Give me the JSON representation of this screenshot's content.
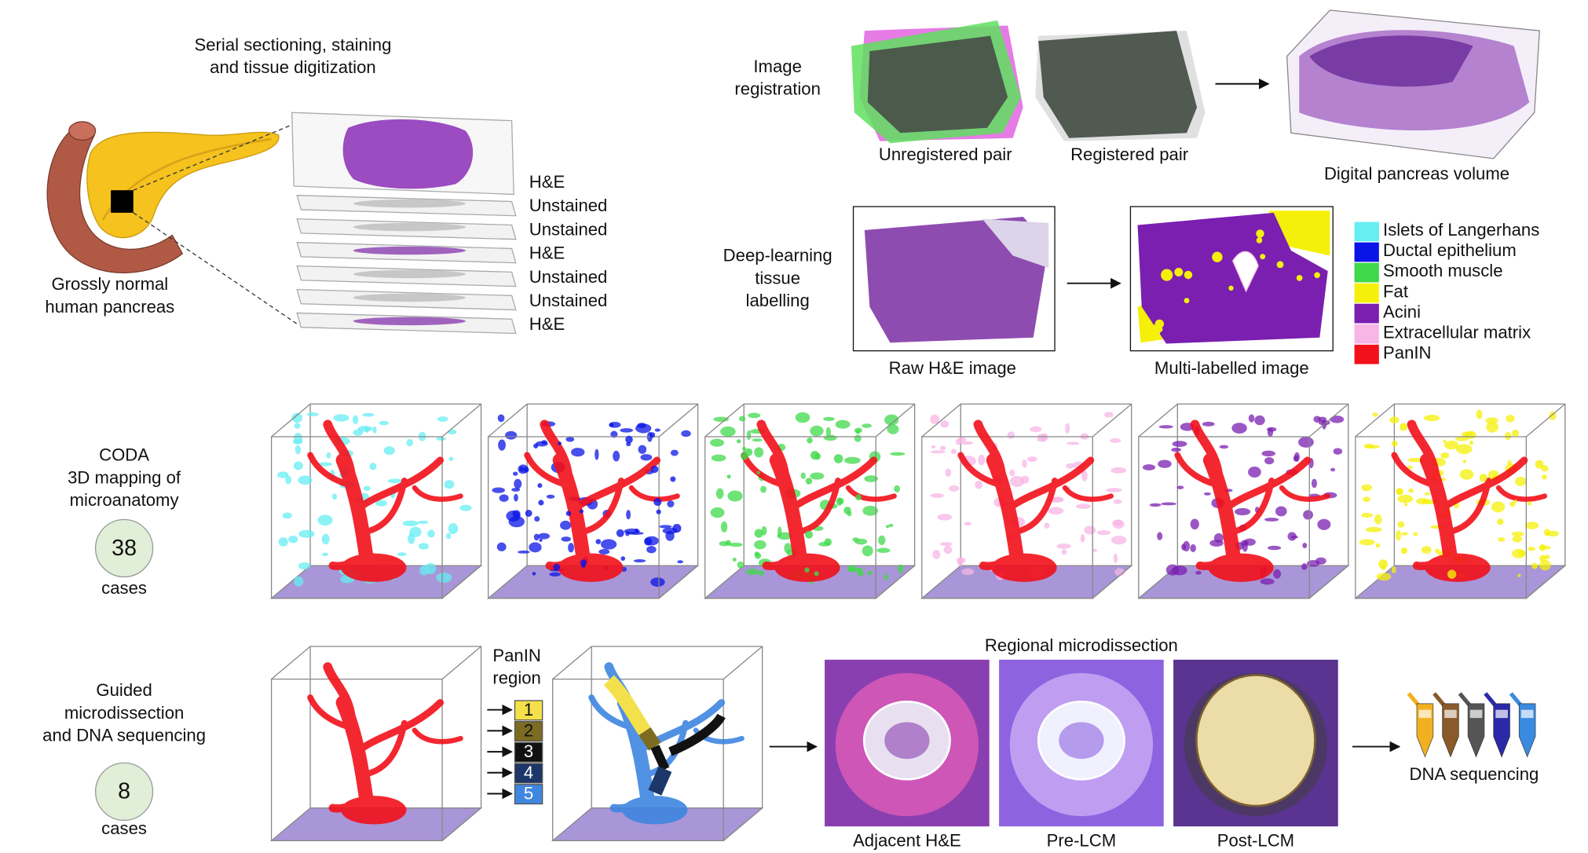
{
  "sectioning": {
    "title": [
      "Serial sectioning, staining",
      "and tissue digitization"
    ],
    "stains": [
      "H&E",
      "Unstained",
      "Unstained",
      "H&E",
      "Unstained",
      "Unstained",
      "H&E"
    ],
    "organ_label": [
      "Grossly normal",
      "human pancreas"
    ]
  },
  "registration": {
    "label": [
      "Image",
      "registration"
    ],
    "unregistered": "Unregistered pair",
    "registered": "Registered pair",
    "volume": "Digital pancreas volume"
  },
  "labelling": {
    "label": [
      "Deep-learning",
      "tissue",
      "labelling"
    ],
    "raw": "Raw H&E image",
    "multi": "Multi-labelled image",
    "legend": [
      {
        "name": "Islets of Langerhans",
        "color": "#66eef2"
      },
      {
        "name": "Ductal epithelium",
        "color": "#0a14e6"
      },
      {
        "name": "Smooth muscle",
        "color": "#3fd94a"
      },
      {
        "name": "Fat",
        "color": "#f5f00a"
      },
      {
        "name": "Acini",
        "color": "#7a1fb0"
      },
      {
        "name": "Extracellular matrix",
        "color": "#f7b6e6"
      },
      {
        "name": "PanIN",
        "color": "#f2101a"
      }
    ]
  },
  "mapping": {
    "label": [
      "CODA",
      "3D mapping of",
      "microanatomy"
    ],
    "count": 38,
    "unit": "cases"
  },
  "sequencing": {
    "label": [
      "Guided",
      "microdissection",
      "and DNA sequencing"
    ],
    "count": 8,
    "unit": "cases",
    "region_label": [
      "PanIN",
      "region"
    ],
    "regions": [
      {
        "name": "1",
        "color": "#f4e04a"
      },
      {
        "name": "2",
        "color": "#7c6c22"
      },
      {
        "name": "3",
        "color": "#111111"
      },
      {
        "name": "4",
        "color": "#1c3768"
      },
      {
        "name": "5",
        "color": "#3f86e0"
      }
    ],
    "microdissection_title": "Regional microdissection",
    "panels": [
      "Adjacent H&E",
      "Pre-LCM",
      "Post-LCM"
    ],
    "result": "DNA sequencing"
  }
}
